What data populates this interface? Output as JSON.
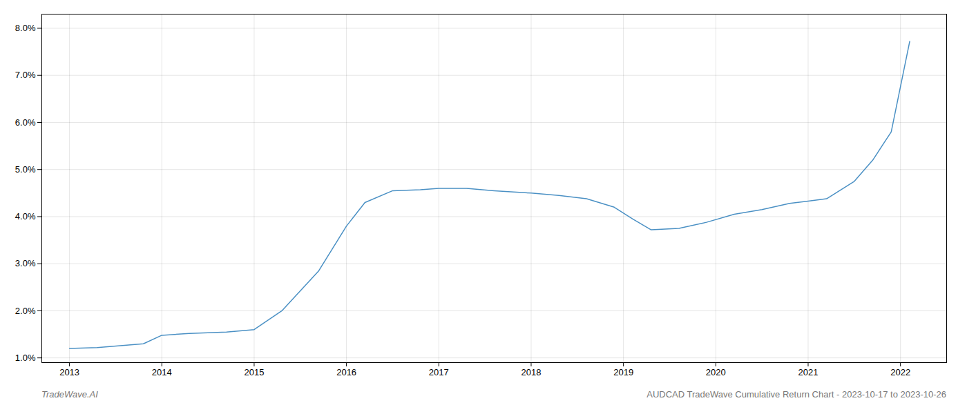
{
  "chart_data": {
    "type": "line",
    "title": "AUDCAD TradeWave Cumulative Return Chart - 2023-10-17 to 2023-10-26",
    "annotations": [
      "TradeWave.AI"
    ],
    "x": [
      2013.0,
      2013.3,
      2013.8,
      2014.0,
      2014.3,
      2014.7,
      2015.0,
      2015.3,
      2015.7,
      2016.0,
      2016.2,
      2016.5,
      2016.8,
      2017.0,
      2017.3,
      2017.6,
      2018.0,
      2018.3,
      2018.6,
      2018.9,
      2019.1,
      2019.3,
      2019.6,
      2019.9,
      2020.2,
      2020.5,
      2020.8,
      2021.0,
      2021.2,
      2021.5,
      2021.7,
      2021.9,
      2022.1
    ],
    "values": [
      1.2,
      1.22,
      1.3,
      1.48,
      1.52,
      1.55,
      1.6,
      2.0,
      2.85,
      3.8,
      4.3,
      4.55,
      4.57,
      4.6,
      4.6,
      4.55,
      4.5,
      4.45,
      4.38,
      4.2,
      3.95,
      3.72,
      3.75,
      3.88,
      4.05,
      4.15,
      4.28,
      4.33,
      4.38,
      4.75,
      5.2,
      5.8,
      7.72
    ],
    "color": "#4a90c4",
    "xlim": [
      2012.7,
      2022.5
    ],
    "ylim": [
      0.9,
      8.3
    ],
    "xticks": [
      2013,
      2014,
      2015,
      2016,
      2017,
      2018,
      2019,
      2020,
      2021,
      2022
    ],
    "yticks": [
      {
        "value": 1.0,
        "label": "1.0%"
      },
      {
        "value": 2.0,
        "label": "2.0%"
      },
      {
        "value": 3.0,
        "label": "3.0%"
      },
      {
        "value": 4.0,
        "label": "4.0%"
      },
      {
        "value": 5.0,
        "label": "5.0%"
      },
      {
        "value": 6.0,
        "label": "6.0%"
      },
      {
        "value": 7.0,
        "label": "7.0%"
      },
      {
        "value": 8.0,
        "label": "8.0%"
      }
    ],
    "grid": true
  }
}
